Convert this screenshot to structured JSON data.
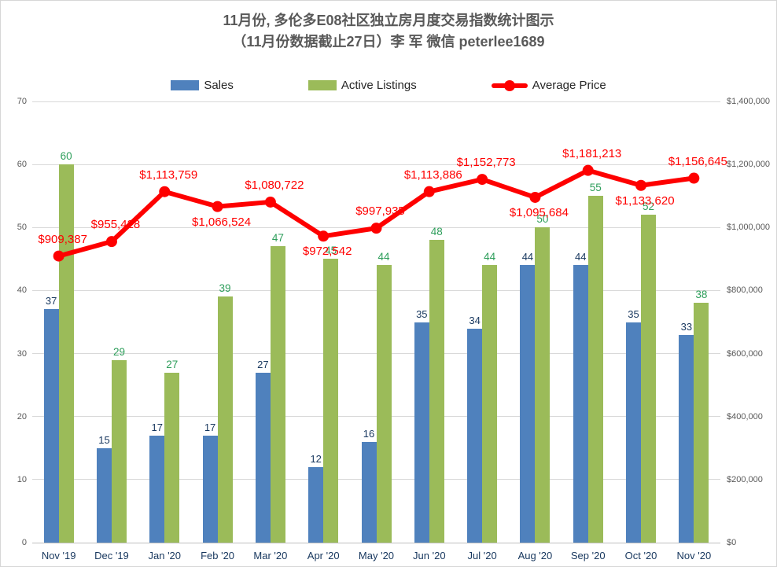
{
  "title": {
    "line1": "11月份, 多伦多E08社区独立房月度交易指数统计图示",
    "line2": "（11月份数据截止27日）李 军 微信  peterlee1689"
  },
  "legend": {
    "items": [
      {
        "label": "Sales"
      },
      {
        "label": "Active Listings"
      },
      {
        "label": "Average Price"
      }
    ]
  },
  "colors": {
    "sales_bar": "#4f81bd",
    "sales_label": "#17375e",
    "listings_bar": "#9bbb59",
    "listings_label": "#2e9e5b",
    "price_line": "#fe0000",
    "price_label": "#ff0000",
    "axis_text": "#595959",
    "x_axis_text": "#17375e",
    "gridline": "#d9d9d9",
    "axis_line": "#bfbfbf"
  },
  "chart_data": {
    "type": "combo",
    "title": "11月份, 多伦多E08社区独立房月度交易指数统计图示（11月份数据截止27日）李 军 微信 peterlee1689",
    "categories": [
      "Nov '19",
      "Dec '19",
      "Jan '20",
      "Feb '20",
      "Mar '20",
      "Apr '20",
      "May '20",
      "Jun '20",
      "Jul '20",
      "Aug '20",
      "Sep '20",
      "Oct '20",
      "Nov '20"
    ],
    "series": [
      {
        "name": "Sales",
        "type": "bar",
        "axis": "left",
        "color": "#4f81bd",
        "values": [
          37,
          15,
          17,
          17,
          27,
          12,
          16,
          35,
          34,
          44,
          44,
          35,
          33
        ]
      },
      {
        "name": "Active Listings",
        "type": "bar",
        "axis": "left",
        "color": "#9bbb59",
        "values": [
          60,
          29,
          27,
          39,
          47,
          45,
          44,
          48,
          44,
          50,
          55,
          52,
          38
        ]
      },
      {
        "name": "Average Price",
        "type": "line",
        "axis": "right",
        "color": "#fe0000",
        "values": [
          909387,
          955428,
          1113759,
          1066524,
          1080722,
          972542,
          997935,
          1113886,
          1152773,
          1095684,
          1181213,
          1133620,
          1156645
        ],
        "point_labels": [
          "$909,387",
          "$955,428",
          "$1,113,759",
          "$1,066,524",
          "$1,080,722",
          "$972,542",
          "$997,935",
          "$1,113,886",
          "$1,152,773",
          "$1,095,684",
          "$1,181,213",
          "$1,133,620",
          "$1,156,645"
        ],
        "label_positions": [
          "above",
          "above",
          "above",
          "below",
          "above",
          "below",
          "above",
          "above",
          "above",
          "below",
          "above",
          "below",
          "above"
        ]
      }
    ],
    "left_axis": {
      "min": 0,
      "max": 70,
      "step": 10,
      "ticks": [
        "0",
        "10",
        "20",
        "30",
        "40",
        "50",
        "60",
        "70"
      ]
    },
    "right_axis": {
      "min": 0,
      "max": 1400000,
      "step": 200000,
      "ticks": [
        "$0",
        "$200,000",
        "$400,000",
        "$600,000",
        "$800,000",
        "$1,000,000",
        "$1,200,000",
        "$1,400,000"
      ]
    },
    "grid": true,
    "legend_position": "top"
  }
}
